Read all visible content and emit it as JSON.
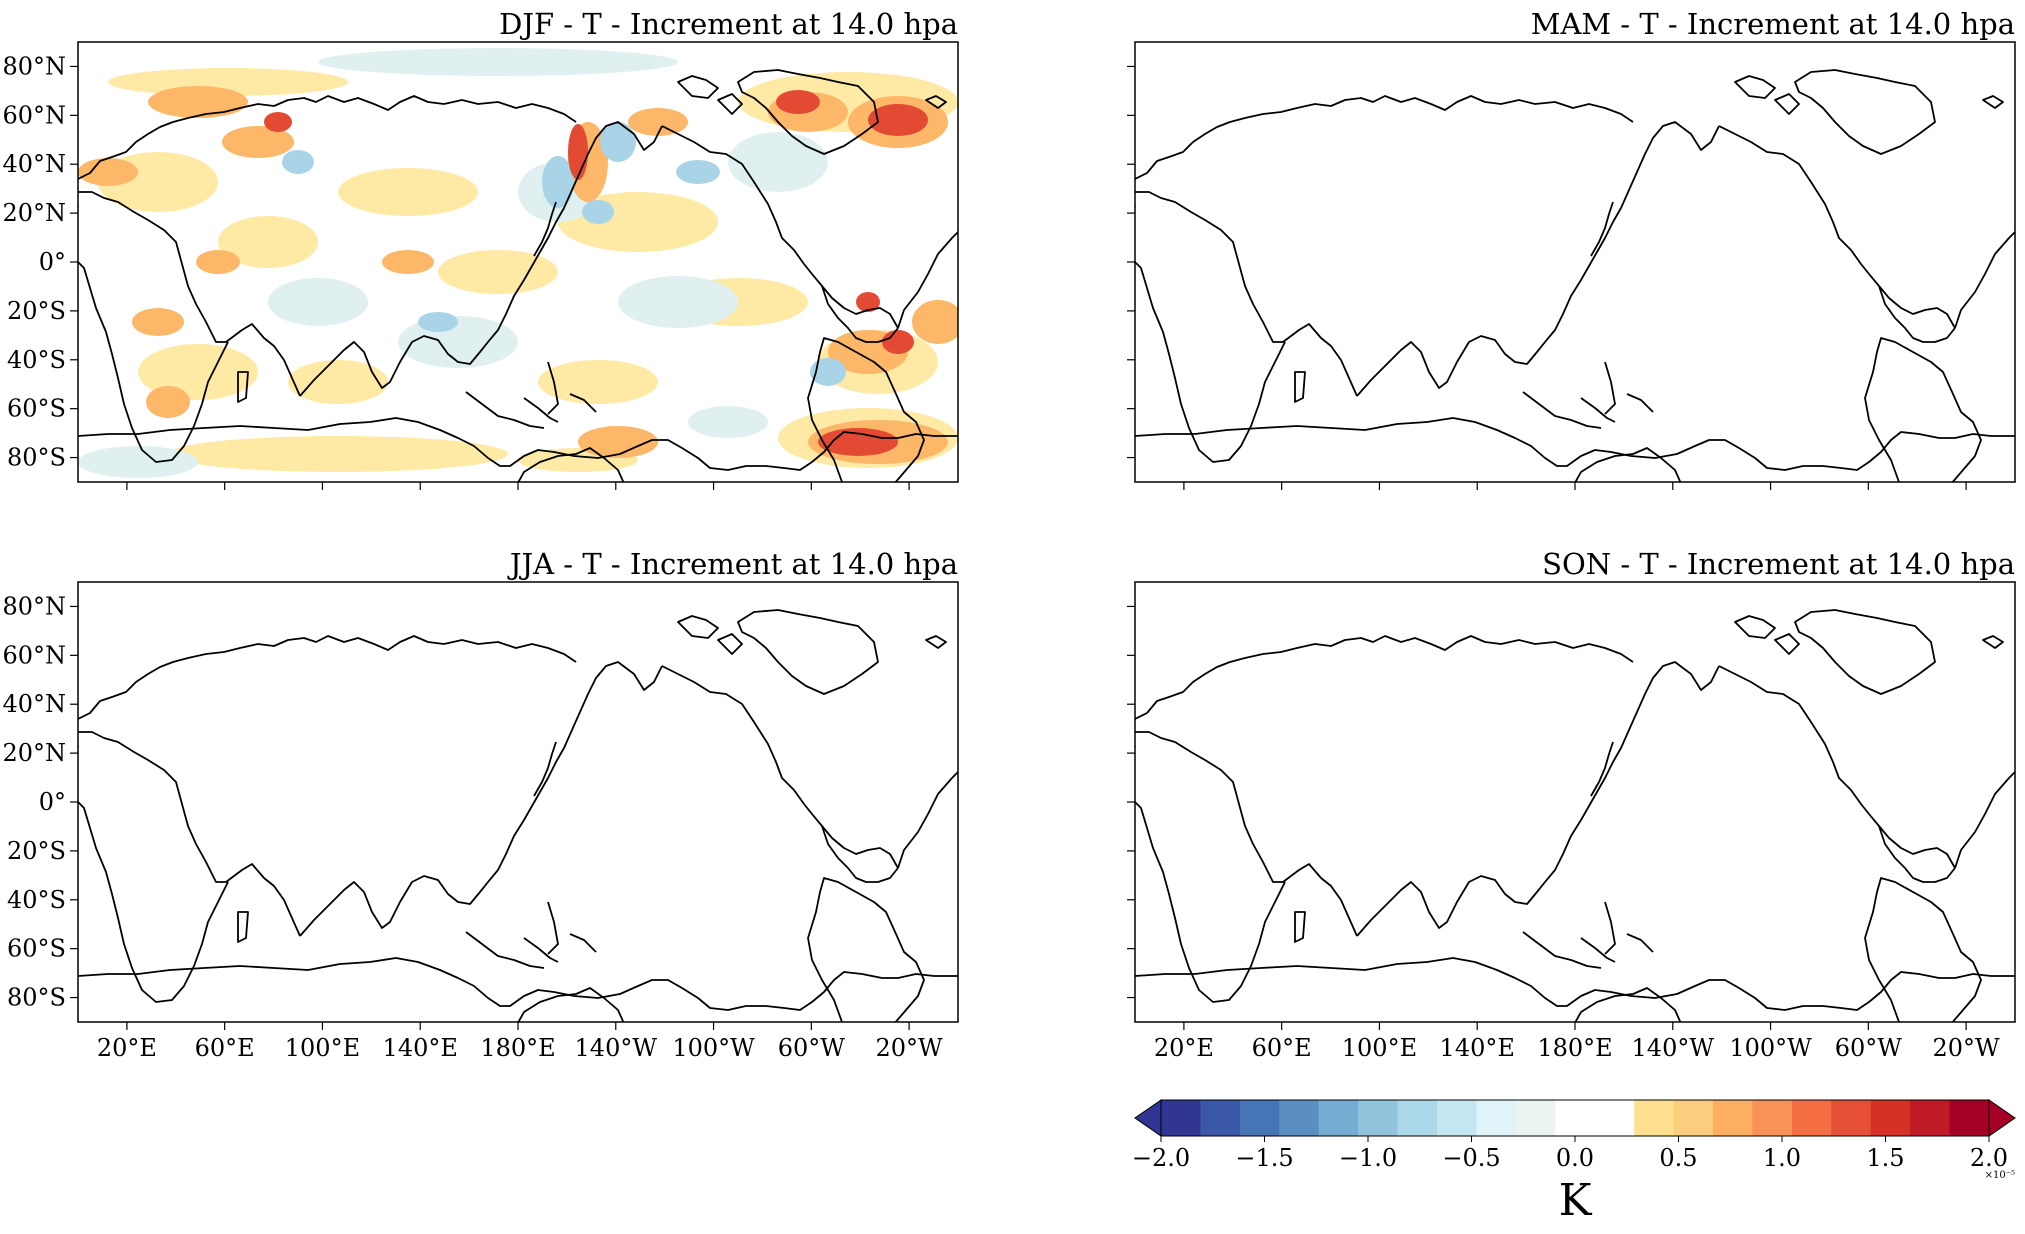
{
  "figure": {
    "panels": [
      {
        "title": "DJF - T - Increment at 14.0 hpa",
        "has_increment": true,
        "show_lat_labels": true,
        "show_lon_labels": false
      },
      {
        "title": "MAM - T - Increment at 14.0 hpa",
        "has_increment": false,
        "show_lat_labels": false,
        "show_lon_labels": false
      },
      {
        "title": "JJA - T - Increment at 14.0 hpa",
        "has_increment": false,
        "show_lat_labels": true,
        "show_lon_labels": true
      },
      {
        "title": "SON - T - Increment at 14.0 hpa",
        "has_increment": false,
        "show_lat_labels": false,
        "show_lon_labels": true
      }
    ],
    "projection": "PlateCarree, central longitude 180",
    "lat_ticks": [
      "80°N",
      "60°N",
      "40°N",
      "20°N",
      "0°",
      "20°S",
      "40°S",
      "60°S",
      "80°S"
    ],
    "lat_values": [
      80,
      60,
      40,
      20,
      0,
      -20,
      -40,
      -60,
      -80
    ],
    "lon_ticks": [
      "20°E",
      "60°E",
      "100°E",
      "140°E",
      "180°E",
      "140°W",
      "100°W",
      "60°W",
      "20°W"
    ],
    "lon_values": [
      20,
      60,
      100,
      140,
      180,
      -140,
      -100,
      -60,
      -20
    ],
    "lat_range": [
      -90,
      90
    ],
    "lon_range": [
      0,
      360
    ]
  },
  "colorbar": {
    "unit": "K",
    "exponent_label": "×10⁻⁵",
    "range": [
      -2.0,
      2.0
    ],
    "tick_labels": [
      "−2.0",
      "−1.5",
      "−1.0",
      "−0.5",
      "0.0",
      "0.5",
      "1.0",
      "1.5",
      "2.0"
    ],
    "tick_values": [
      -2.0,
      -1.5,
      -1.0,
      -0.5,
      0.0,
      0.5,
      1.0,
      1.5,
      2.0
    ],
    "extend": "both",
    "colors": [
      "#313695",
      "#3b58a6",
      "#4575b4",
      "#5b8fc2",
      "#74add1",
      "#91c3dd",
      "#abd9e9",
      "#c4e6f0",
      "#e0f3f8",
      "#ebf5ef",
      "#ffffff",
      "#ffffff",
      "#fee090",
      "#fdcd7e",
      "#fdae61",
      "#f99355",
      "#f46d43",
      "#e65036",
      "#d73027",
      "#c01a27",
      "#a50026"
    ],
    "color_min_end": "#313695",
    "color_max_end": "#a50026"
  },
  "colors": {
    "positive_weak": "#fee9a5",
    "positive_mid": "#fdb768",
    "positive_strong": "#e34a33",
    "negative_weak": "#e0f0f0",
    "negative_mid": "#a9d3e6",
    "coast": "#000000"
  }
}
